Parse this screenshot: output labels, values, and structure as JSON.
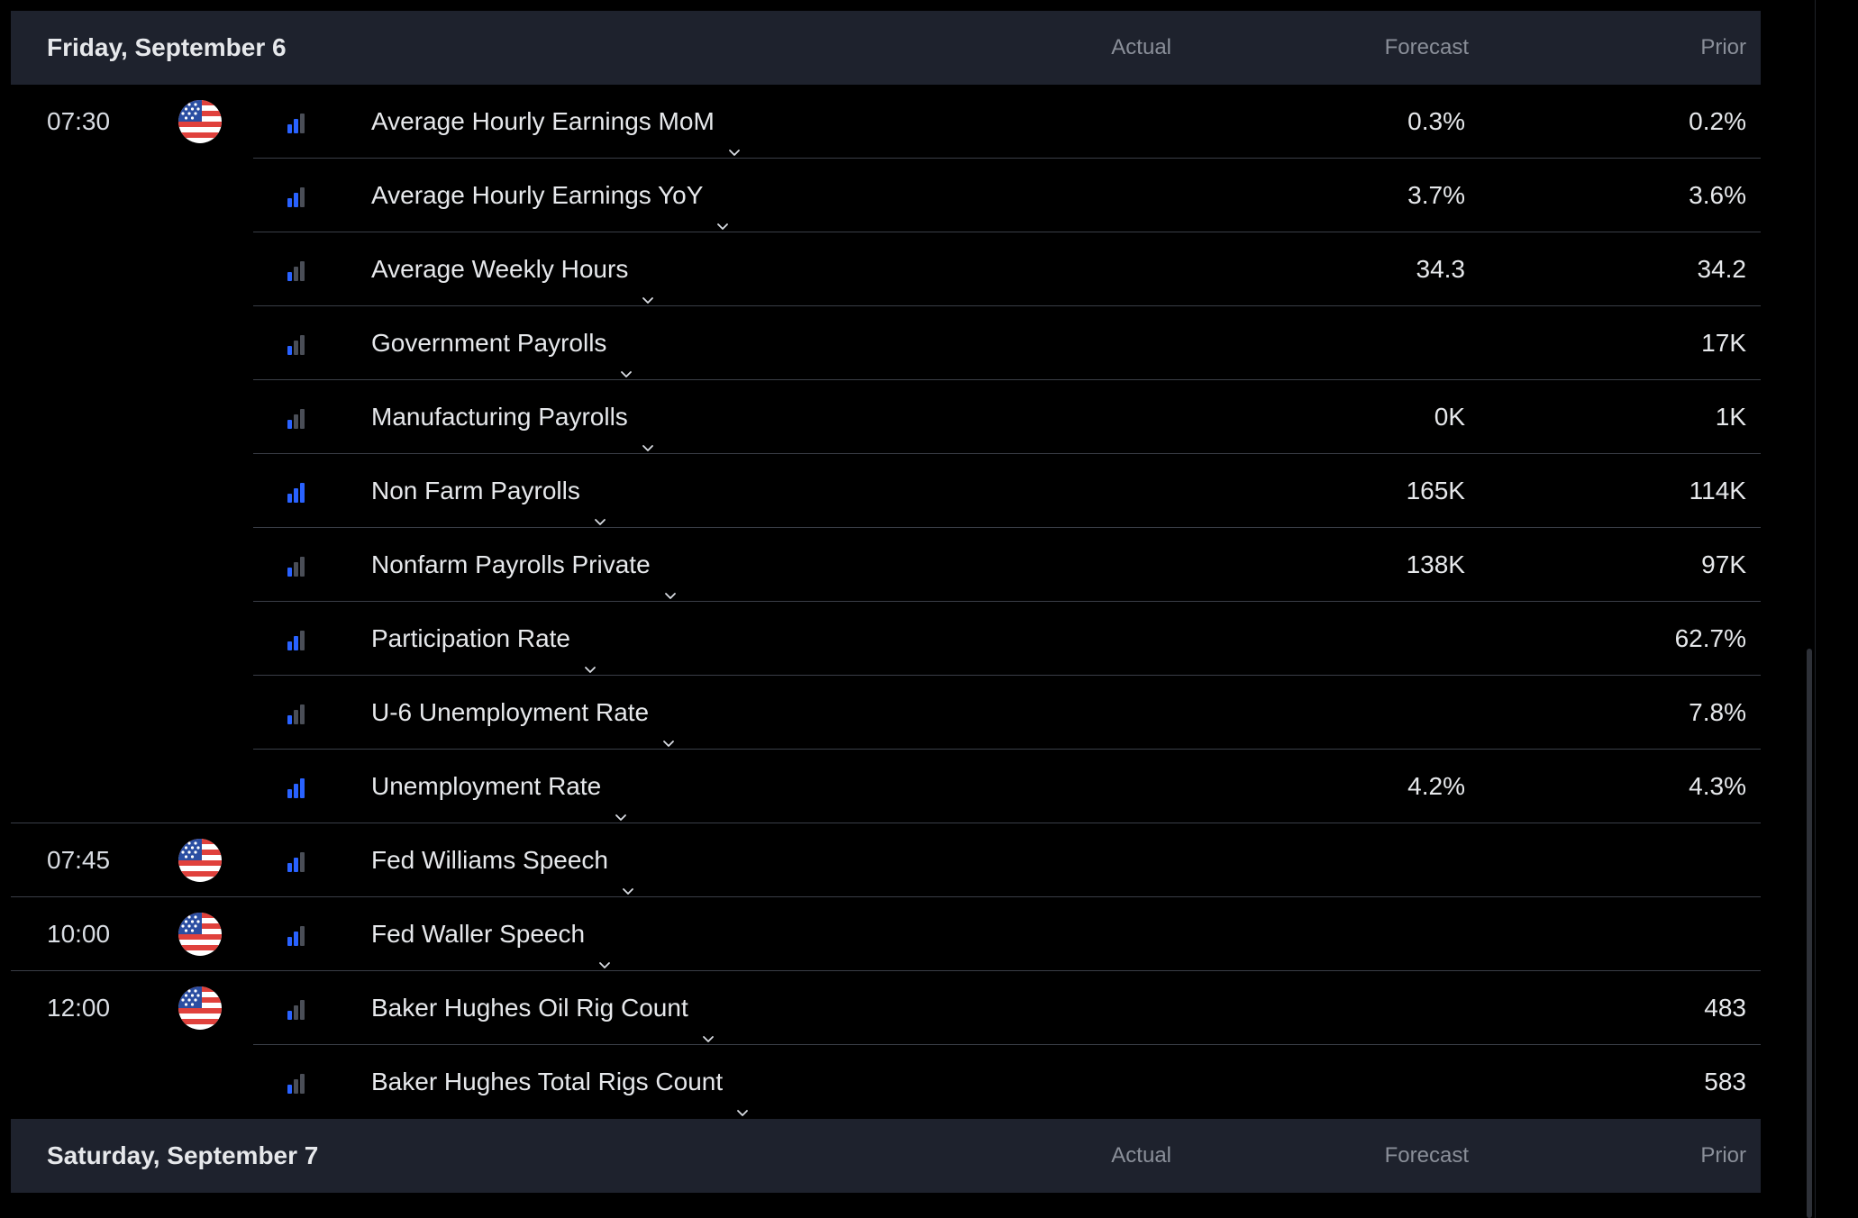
{
  "columns": {
    "actual": "Actual",
    "forecast": "Forecast",
    "prior": "Prior"
  },
  "days": [
    {
      "date": "Friday, September 6",
      "events": [
        {
          "time": "07:30",
          "flag": "us-flag-icon",
          "importance": 2,
          "title": "Average Hourly Earnings MoM",
          "actual": "",
          "forecast": "0.3%",
          "prior": "0.2%"
        },
        {
          "time": "",
          "flag": "",
          "importance": 2,
          "title": "Average Hourly Earnings YoY",
          "actual": "",
          "forecast": "3.7%",
          "prior": "3.6%"
        },
        {
          "time": "",
          "flag": "",
          "importance": 1,
          "title": "Average Weekly Hours",
          "actual": "",
          "forecast": "34.3",
          "prior": "34.2"
        },
        {
          "time": "",
          "flag": "",
          "importance": 1,
          "title": "Government Payrolls",
          "actual": "",
          "forecast": "",
          "prior": "17K"
        },
        {
          "time": "",
          "flag": "",
          "importance": 1,
          "title": "Manufacturing Payrolls",
          "actual": "",
          "forecast": "0K",
          "prior": "1K"
        },
        {
          "time": "",
          "flag": "",
          "importance": 3,
          "title": "Non Farm Payrolls",
          "actual": "",
          "forecast": "165K",
          "prior": "114K"
        },
        {
          "time": "",
          "flag": "",
          "importance": 1,
          "title": "Nonfarm Payrolls Private",
          "actual": "",
          "forecast": "138K",
          "prior": "97K"
        },
        {
          "time": "",
          "flag": "",
          "importance": 2,
          "title": "Participation Rate",
          "actual": "",
          "forecast": "",
          "prior": "62.7%"
        },
        {
          "time": "",
          "flag": "",
          "importance": 1,
          "title": "U-6 Unemployment Rate",
          "actual": "",
          "forecast": "",
          "prior": "7.8%"
        },
        {
          "time": "",
          "flag": "",
          "importance": 3,
          "title": "Unemployment Rate",
          "actual": "",
          "forecast": "4.2%",
          "prior": "4.3%"
        },
        {
          "time": "07:45",
          "flag": "us-flag-icon",
          "importance": 2,
          "title": "Fed Williams Speech",
          "actual": "",
          "forecast": "",
          "prior": ""
        },
        {
          "time": "10:00",
          "flag": "us-flag-icon",
          "importance": 2,
          "title": "Fed Waller Speech",
          "actual": "",
          "forecast": "",
          "prior": ""
        },
        {
          "time": "12:00",
          "flag": "us-flag-icon",
          "importance": 1,
          "title": "Baker Hughes Oil Rig Count",
          "actual": "",
          "forecast": "",
          "prior": "483"
        },
        {
          "time": "",
          "flag": "",
          "importance": 1,
          "title": "Baker Hughes Total Rigs Count",
          "actual": "",
          "forecast": "",
          "prior": "583"
        }
      ]
    },
    {
      "date": "Saturday, September 7",
      "events": []
    }
  ],
  "colors": {
    "accent": "#2962ff",
    "inactive_bar": "#4a4e57",
    "header_bg": "#1e222d",
    "separator": "#3a3e47"
  }
}
